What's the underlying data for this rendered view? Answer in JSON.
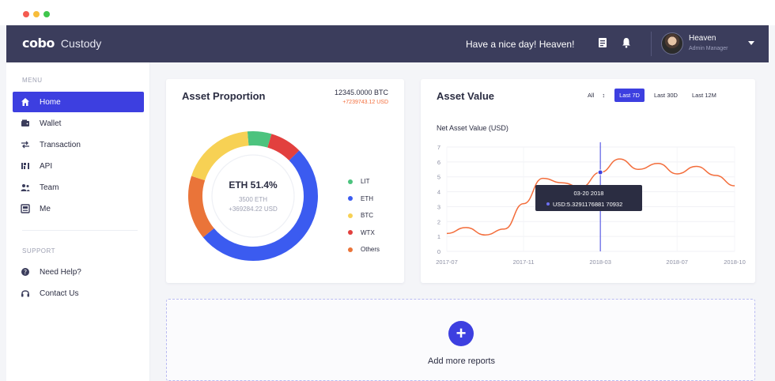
{
  "window": {
    "controls": [
      "close",
      "minimize",
      "maximize"
    ]
  },
  "header": {
    "logo": "cobo",
    "product": "Custody",
    "greeting": "Have a nice day! Heaven!",
    "icons": [
      "document-icon",
      "bell-icon"
    ],
    "user": {
      "name": "Heaven",
      "role": "Admin Manager"
    }
  },
  "sidebar": {
    "menu_label": "MENU",
    "items": [
      {
        "label": "Home",
        "icon": "home-icon",
        "active": true
      },
      {
        "label": "Wallet",
        "icon": "wallet-icon"
      },
      {
        "label": "Transaction",
        "icon": "transaction-icon"
      },
      {
        "label": "API",
        "icon": "api-icon"
      },
      {
        "label": "Team",
        "icon": "team-icon"
      },
      {
        "label": "Me",
        "icon": "me-icon"
      }
    ],
    "support_label": "SUPPORT",
    "support_items": [
      {
        "label": "Need Help?",
        "icon": "help-icon"
      },
      {
        "label": "Contact Us",
        "icon": "headset-icon"
      }
    ]
  },
  "asset_proportion": {
    "title": "Asset Proportion",
    "total_btc": "12345.0000 BTC",
    "total_usd": "+7239743.12 USD",
    "center_title": "ETH  51.4%",
    "center_amount": "3500 ETH",
    "center_usd": "+369284.22 USD",
    "legend": [
      {
        "label": "LIT",
        "color": "#4cc37e"
      },
      {
        "label": "ETH",
        "color": "#3b5bf0"
      },
      {
        "label": "BTC",
        "color": "#f7d154"
      },
      {
        "label": "WTX",
        "color": "#e2403e"
      },
      {
        "label": "Others",
        "color": "#ea7439"
      }
    ]
  },
  "asset_value": {
    "title": "Asset Value",
    "range_select": "All",
    "ranges": [
      "Last 7D",
      "Last 30D",
      "Last 12M"
    ],
    "selected_range": "Last 7D",
    "chart_title": "Net Asset Value (USD)",
    "tooltip": {
      "date": "03-20 2018",
      "value": "USD:5.3291176881 70932"
    }
  },
  "add_reports": {
    "label": "Add more reports",
    "icon": "plus-icon"
  },
  "chart_data": [
    {
      "type": "pie",
      "labels": [
        "LIT",
        "WTX",
        "ETH",
        "Others",
        "BTC"
      ],
      "values": [
        6,
        8,
        51.4,
        16,
        18.6
      ],
      "colors": [
        "#4cc37e",
        "#e2403e",
        "#3b5bf0",
        "#ea7439",
        "#f7d154"
      ]
    },
    {
      "type": "line",
      "title": "Net Asset Value (USD)",
      "x_ticks": [
        "2017-07",
        "2017-11",
        "2018-03",
        "2018-07",
        "2018-10"
      ],
      "y_ticks": [
        0,
        1,
        2,
        3,
        4,
        5,
        6,
        7
      ],
      "ylim": [
        0,
        7
      ],
      "series": [
        {
          "color": "#f36d3b",
          "x": [
            "2017-07",
            "2017-08",
            "2017-09",
            "2017-10",
            "2017-11",
            "2017-12",
            "2018-01",
            "2018-02",
            "2018-03",
            "2018-04",
            "2018-05",
            "2018-06",
            "2018-07",
            "2018-08",
            "2018-09",
            "2018-10"
          ],
          "y": [
            1.2,
            1.6,
            1.1,
            1.5,
            3.2,
            4.9,
            4.6,
            4.3,
            5.3,
            6.2,
            5.5,
            5.9,
            5.2,
            5.7,
            5.1,
            4.4
          ]
        }
      ],
      "highlight": {
        "x": "2018-03",
        "y": 5.3
      }
    }
  ]
}
